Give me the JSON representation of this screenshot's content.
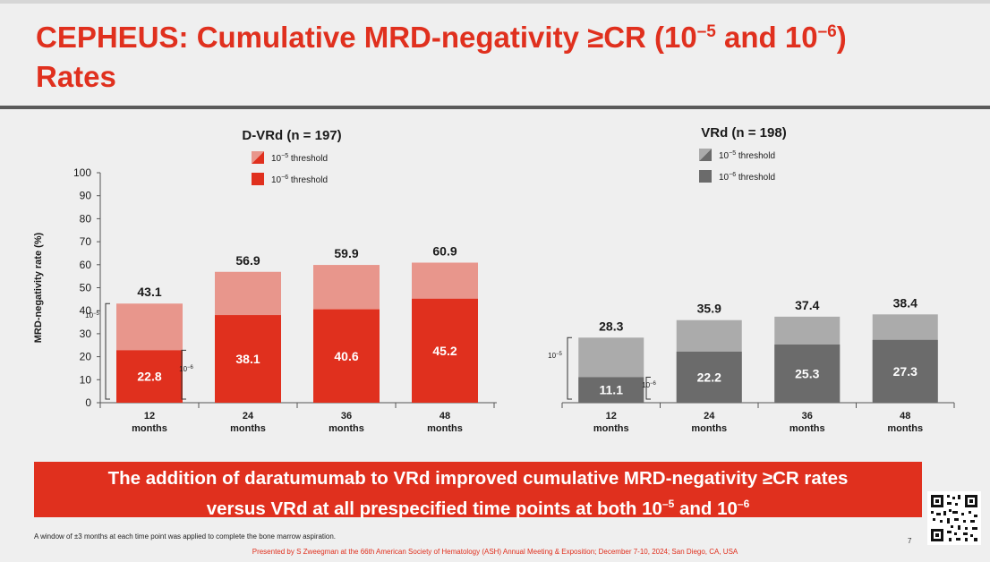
{
  "slide": {
    "title_prefix": "CEPHEUS: Cumulative MRD-negativity ≥CR (10",
    "title_sup1": "–5",
    "title_mid": " and 10",
    "title_sup2": "–6",
    "title_suffix": ")",
    "title_line2": "Rates",
    "banner_line1": "The addition of daratumumab to VRd improved cumulative MRD-negativity ≥CR rates",
    "banner_line2_prefix": "versus VRd at all prespecified time points at both 10",
    "banner_sup1": "–5",
    "banner_mid": " and 10",
    "banner_sup2": "–6",
    "footnote": "A window of ±3 months at each time point was applied to complete the bone marrow aspiration.",
    "presenter": "Presented by S Zweegman at the 66th American Society of Hematology (ASH) Annual Meeting & Exposition; December 7-10, 2024; San Diego, CA, USA",
    "page_number": "7"
  },
  "colors": {
    "accent_red": "#e0301e",
    "light_red": "#e8968c",
    "dark_gray": "#6b6b6b",
    "light_gray": "#ababab"
  },
  "chart_data": [
    {
      "type": "bar",
      "title": "D-VRd (n = 197)",
      "ylabel": "MRD-negativity rate (%)",
      "ylim": [
        0,
        100
      ],
      "yticks": [
        "0",
        "10",
        "20",
        "30",
        "40",
        "50",
        "60",
        "70",
        "80",
        "90",
        "100"
      ],
      "categories": [
        "12 months",
        "24 months",
        "36 months",
        "48 months"
      ],
      "category_lines": [
        [
          "12",
          "months"
        ],
        [
          "24",
          "months"
        ],
        [
          "36",
          "months"
        ],
        [
          "48",
          "months"
        ]
      ],
      "legend": [
        {
          "sup": "−5",
          "label": "threshold"
        },
        {
          "sup": "−6",
          "label": "threshold"
        }
      ],
      "series": [
        {
          "name": "10−5 threshold",
          "values": [
            43.1,
            56.9,
            59.9,
            60.9
          ]
        },
        {
          "name": "10−6 threshold",
          "values": [
            22.8,
            38.1,
            40.6,
            45.2
          ]
        }
      ],
      "value_labels_total": [
        "43.1",
        "56.9",
        "59.9",
        "60.9"
      ],
      "value_labels_inner": [
        "22.8",
        "38.1",
        "40.6",
        "45.2"
      ],
      "bracket_labels": [
        "10",
        "−5",
        "10",
        "−6"
      ]
    },
    {
      "type": "bar",
      "title": "VRd (n = 198)",
      "ylim": [
        0,
        100
      ],
      "categories": [
        "12 months",
        "24 months",
        "36 months",
        "48 months"
      ],
      "category_lines": [
        [
          "12",
          "months"
        ],
        [
          "24",
          "months"
        ],
        [
          "36",
          "months"
        ],
        [
          "48",
          "months"
        ]
      ],
      "legend": [
        {
          "sup": "−5",
          "label": "threshold"
        },
        {
          "sup": "−6",
          "label": "threshold"
        }
      ],
      "series": [
        {
          "name": "10−5 threshold",
          "values": [
            28.3,
            35.9,
            37.4,
            38.4
          ]
        },
        {
          "name": "10−6 threshold",
          "values": [
            11.1,
            22.2,
            25.3,
            27.3
          ]
        }
      ],
      "value_labels_total": [
        "28.3",
        "35.9",
        "37.4",
        "38.4"
      ],
      "value_labels_inner": [
        "11.1",
        "22.2",
        "25.3",
        "27.3"
      ],
      "bracket_labels": [
        "10",
        "−5",
        "10",
        "−6"
      ]
    }
  ]
}
